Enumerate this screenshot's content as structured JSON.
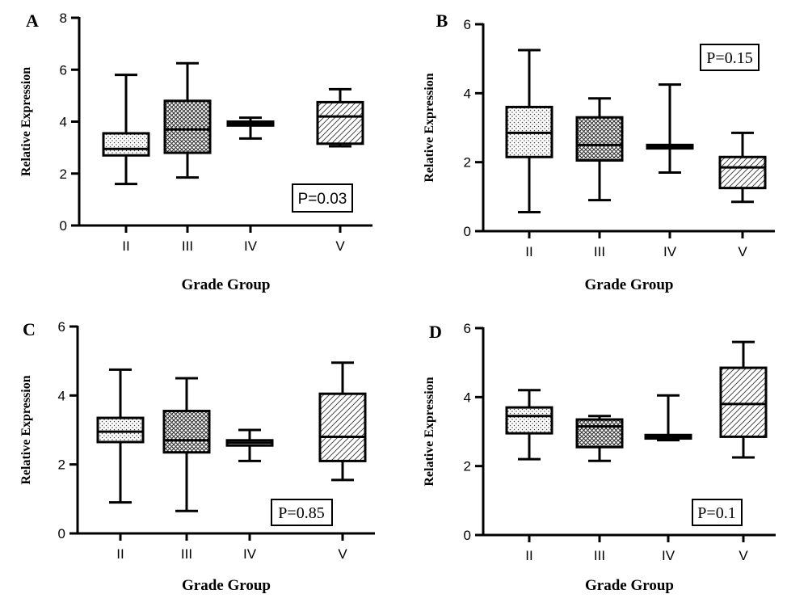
{
  "chart_data": [
    {
      "panel_label": "A",
      "type": "box",
      "ylabel": "Relative Expression",
      "xlabel": "Grade Group",
      "ylim": [
        0,
        8
      ],
      "yticks": [
        0,
        2,
        4,
        6,
        8
      ],
      "categories": [
        "II",
        "III",
        "IV",
        "V"
      ],
      "boxes": [
        {
          "min": 1.6,
          "q1": 2.7,
          "median": 2.95,
          "q3": 3.55,
          "max": 5.8
        },
        {
          "min": 1.85,
          "q1": 2.8,
          "median": 3.7,
          "q3": 4.8,
          "max": 6.25
        },
        {
          "min": 3.35,
          "q1": 3.85,
          "median": 3.92,
          "q3": 4.0,
          "max": 4.15
        },
        {
          "min": 3.05,
          "q1": 3.15,
          "median": 4.2,
          "q3": 4.75,
          "max": 5.25
        }
      ],
      "patterns": [
        "dots",
        "cross",
        "none",
        "diag"
      ],
      "p_value": "P=0.03"
    },
    {
      "panel_label": "B",
      "type": "box",
      "ylabel": "Relative Expression",
      "xlabel": "Grade Group",
      "ylim": [
        0,
        6
      ],
      "yticks": [
        0,
        2,
        4,
        6
      ],
      "categories": [
        "II",
        "III",
        "IV",
        "V"
      ],
      "boxes": [
        {
          "min": 0.55,
          "q1": 2.15,
          "median": 2.85,
          "q3": 3.6,
          "max": 5.25
        },
        {
          "min": 0.9,
          "q1": 2.05,
          "median": 2.5,
          "q3": 3.3,
          "max": 3.85
        },
        {
          "min": 1.7,
          "q1": 2.4,
          "median": 2.45,
          "q3": 2.5,
          "max": 4.25
        },
        {
          "min": 0.85,
          "q1": 1.25,
          "median": 1.85,
          "q3": 2.15,
          "max": 2.85
        }
      ],
      "patterns": [
        "dots",
        "cross",
        "none",
        "diag"
      ],
      "p_value": "P=0.15"
    },
    {
      "panel_label": "C",
      "type": "box",
      "ylabel": "Relative Expression",
      "xlabel": "Grade Group",
      "ylim": [
        0,
        6
      ],
      "yticks": [
        0,
        2,
        4,
        6
      ],
      "categories": [
        "II",
        "III",
        "IV",
        "V"
      ],
      "boxes": [
        {
          "min": 0.9,
          "q1": 2.65,
          "median": 2.95,
          "q3": 3.35,
          "max": 4.75
        },
        {
          "min": 0.65,
          "q1": 2.35,
          "median": 2.7,
          "q3": 3.55,
          "max": 4.5
        },
        {
          "min": 2.1,
          "q1": 2.55,
          "median": 2.63,
          "q3": 2.7,
          "max": 3.0
        },
        {
          "min": 1.55,
          "q1": 2.1,
          "median": 2.8,
          "q3": 4.05,
          "max": 4.95
        }
      ],
      "patterns": [
        "dots",
        "cross",
        "none",
        "diag"
      ],
      "p_value": "P=0.85"
    },
    {
      "panel_label": "D",
      "type": "box",
      "ylabel": "Relative Expression",
      "xlabel": "Grade Group",
      "ylim": [
        0,
        6
      ],
      "yticks": [
        0,
        2,
        4,
        6
      ],
      "categories": [
        "II",
        "III",
        "IV",
        "V"
      ],
      "boxes": [
        {
          "min": 2.2,
          "q1": 2.95,
          "median": 3.45,
          "q3": 3.7,
          "max": 4.2
        },
        {
          "min": 2.15,
          "q1": 2.55,
          "median": 3.15,
          "q3": 3.35,
          "max": 3.45
        },
        {
          "min": 2.75,
          "q1": 2.8,
          "median": 2.85,
          "q3": 2.9,
          "max": 4.05
        },
        {
          "min": 2.25,
          "q1": 2.85,
          "median": 3.8,
          "q3": 4.85,
          "max": 5.6
        }
      ],
      "patterns": [
        "dots",
        "cross",
        "none",
        "diag"
      ],
      "p_value": "P=0.1"
    }
  ]
}
